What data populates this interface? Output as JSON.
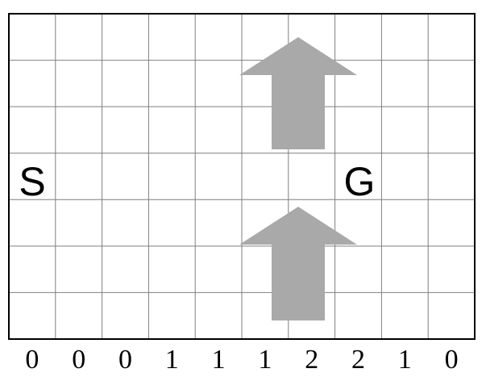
{
  "gridworld": {
    "columns": 10,
    "rows": 7,
    "start_label": "S",
    "goal_label": "G",
    "wind_strengths": [
      "0",
      "0",
      "0",
      "1",
      "1",
      "1",
      "2",
      "2",
      "1",
      "0"
    ],
    "wind_arrows": [
      {
        "name": "wind-arrow-up-top",
        "direction": "up"
      },
      {
        "name": "wind-arrow-up-bottom",
        "direction": "up"
      }
    ],
    "colors": {
      "grid_line": "#7f7f7f",
      "border": "#000000",
      "arrow": "#a9a9a9",
      "text": "#000000"
    }
  }
}
